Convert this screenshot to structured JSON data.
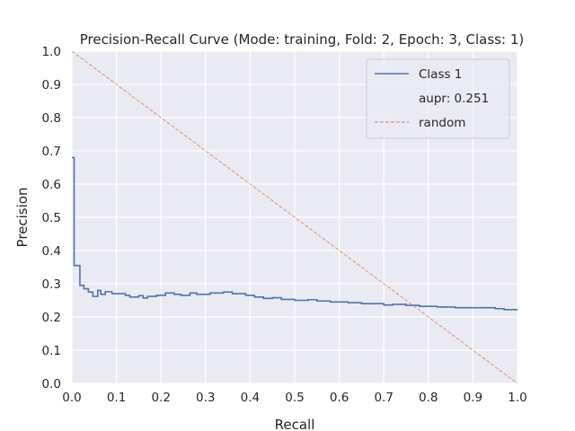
{
  "chart_data": {
    "type": "line",
    "title": "Precision-Recall Curve (Mode: training, Fold: 2, Epoch: 3, Class: 1)",
    "xlabel": "Recall",
    "ylabel": "Precision",
    "xlim": [
      0.0,
      1.0
    ],
    "ylim": [
      0.0,
      1.0
    ],
    "x_ticks": [
      "0.0",
      "0.1",
      "0.2",
      "0.3",
      "0.4",
      "0.5",
      "0.6",
      "0.7",
      "0.8",
      "0.9",
      "1.0"
    ],
    "y_ticks": [
      "0.0",
      "0.1",
      "0.2",
      "0.3",
      "0.4",
      "0.5",
      "0.6",
      "0.7",
      "0.8",
      "0.9",
      "1.0"
    ],
    "grid": true,
    "legend_position": "top-right",
    "legend": [
      {
        "label": "Class 1",
        "style": "solid",
        "color": "#4c72b0"
      },
      {
        "label": "aupr: 0.251",
        "style": "none",
        "color": ""
      },
      {
        "label": "random",
        "style": "dashed",
        "color": "#dd8452"
      }
    ],
    "series": [
      {
        "name": "Class 1",
        "color": "#4c72b0",
        "step": true,
        "points": [
          [
            0.0,
            0.68
          ],
          [
            0.005,
            0.68
          ],
          [
            0.005,
            0.355
          ],
          [
            0.018,
            0.355
          ],
          [
            0.018,
            0.295
          ],
          [
            0.027,
            0.295
          ],
          [
            0.027,
            0.285
          ],
          [
            0.037,
            0.285
          ],
          [
            0.037,
            0.275
          ],
          [
            0.047,
            0.275
          ],
          [
            0.047,
            0.262
          ],
          [
            0.058,
            0.262
          ],
          [
            0.058,
            0.28
          ],
          [
            0.065,
            0.28
          ],
          [
            0.065,
            0.268
          ],
          [
            0.075,
            0.268
          ],
          [
            0.075,
            0.276
          ],
          [
            0.09,
            0.276
          ],
          [
            0.09,
            0.27
          ],
          [
            0.12,
            0.27
          ],
          [
            0.12,
            0.265
          ],
          [
            0.13,
            0.265
          ],
          [
            0.13,
            0.26
          ],
          [
            0.15,
            0.26
          ],
          [
            0.15,
            0.264
          ],
          [
            0.16,
            0.264
          ],
          [
            0.16,
            0.257
          ],
          [
            0.17,
            0.257
          ],
          [
            0.17,
            0.262
          ],
          [
            0.19,
            0.262
          ],
          [
            0.19,
            0.265
          ],
          [
            0.21,
            0.265
          ],
          [
            0.21,
            0.272
          ],
          [
            0.23,
            0.272
          ],
          [
            0.23,
            0.268
          ],
          [
            0.245,
            0.268
          ],
          [
            0.245,
            0.265
          ],
          [
            0.265,
            0.265
          ],
          [
            0.265,
            0.272
          ],
          [
            0.28,
            0.272
          ],
          [
            0.28,
            0.268
          ],
          [
            0.31,
            0.268
          ],
          [
            0.31,
            0.272
          ],
          [
            0.34,
            0.272
          ],
          [
            0.34,
            0.275
          ],
          [
            0.36,
            0.275
          ],
          [
            0.36,
            0.27
          ],
          [
            0.39,
            0.27
          ],
          [
            0.39,
            0.265
          ],
          [
            0.41,
            0.265
          ],
          [
            0.41,
            0.26
          ],
          [
            0.43,
            0.26
          ],
          [
            0.43,
            0.256
          ],
          [
            0.45,
            0.256
          ],
          [
            0.45,
            0.258
          ],
          [
            0.47,
            0.258
          ],
          [
            0.47,
            0.253
          ],
          [
            0.5,
            0.253
          ],
          [
            0.5,
            0.25
          ],
          [
            0.53,
            0.25
          ],
          [
            0.53,
            0.252
          ],
          [
            0.55,
            0.252
          ],
          [
            0.55,
            0.248
          ],
          [
            0.58,
            0.248
          ],
          [
            0.58,
            0.245
          ],
          [
            0.62,
            0.245
          ],
          [
            0.62,
            0.243
          ],
          [
            0.65,
            0.243
          ],
          [
            0.65,
            0.24
          ],
          [
            0.7,
            0.24
          ],
          [
            0.7,
            0.236
          ],
          [
            0.72,
            0.236
          ],
          [
            0.72,
            0.238
          ],
          [
            0.75,
            0.238
          ],
          [
            0.75,
            0.235
          ],
          [
            0.78,
            0.235
          ],
          [
            0.78,
            0.232
          ],
          [
            0.82,
            0.232
          ],
          [
            0.82,
            0.23
          ],
          [
            0.86,
            0.23
          ],
          [
            0.86,
            0.228
          ],
          [
            0.95,
            0.228
          ],
          [
            0.95,
            0.225
          ],
          [
            0.97,
            0.225
          ],
          [
            0.97,
            0.222
          ],
          [
            1.0,
            0.222
          ]
        ]
      },
      {
        "name": "random",
        "color": "#dd8452",
        "dashed": true,
        "points": [
          [
            0.0,
            1.0
          ],
          [
            1.0,
            0.0
          ]
        ]
      }
    ]
  }
}
